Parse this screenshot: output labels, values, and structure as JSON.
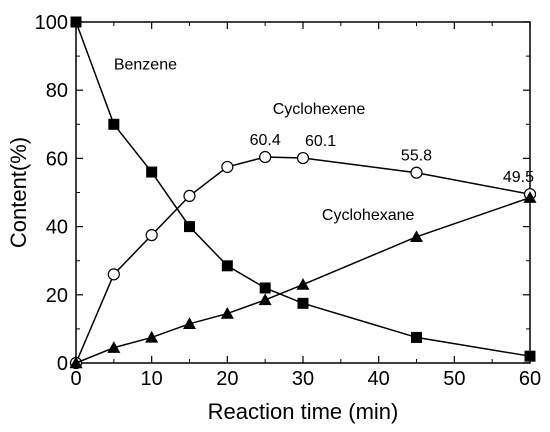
{
  "chart_data": {
    "type": "line",
    "xlabel": "Reaction time (min)",
    "ylabel": "Content(%)",
    "xlim": [
      0,
      60
    ],
    "ylim": [
      0,
      100
    ],
    "xticks": [
      0,
      10,
      20,
      30,
      40,
      50,
      60
    ],
    "yticks": [
      0,
      20,
      40,
      60,
      80,
      100
    ],
    "grid": false,
    "series": [
      {
        "name": "Benzene",
        "marker": "square-filled",
        "color": "#000000",
        "x": [
          0,
          5,
          10,
          15,
          20,
          25,
          30,
          45,
          60
        ],
        "y": [
          100,
          70,
          56,
          40,
          28.5,
          22,
          17.5,
          7.5,
          2
        ]
      },
      {
        "name": "Cyclohexene",
        "marker": "circle-open",
        "color": "#000000",
        "x": [
          0,
          5,
          10,
          15,
          20,
          25,
          30,
          45,
          60
        ],
        "y": [
          0,
          26,
          37.5,
          49,
          57.5,
          60.4,
          60.1,
          55.8,
          49.5
        ]
      },
      {
        "name": "Cyclohexane",
        "marker": "triangle-filled",
        "color": "#000000",
        "x": [
          0,
          5,
          10,
          15,
          20,
          25,
          30,
          45,
          60
        ],
        "y": [
          0,
          4.5,
          7.5,
          11.5,
          14.5,
          18.5,
          23,
          37,
          48.5
        ]
      }
    ],
    "annotations": [
      {
        "text": "Benzene",
        "x": 5,
        "y": 86
      },
      {
        "text": "Cyclohexene",
        "x": 26,
        "y": 73
      },
      {
        "text": "Cyclohexane",
        "x": 32.5,
        "y": 42
      }
    ],
    "data_labels": [
      {
        "text": "60.4",
        "x": 25,
        "y": 60.4
      },
      {
        "text": "60.1",
        "x": 30,
        "y": 60.1
      },
      {
        "text": "55.8",
        "x": 45,
        "y": 55.8
      },
      {
        "text": "49.5",
        "x": 60,
        "y": 49.5
      }
    ]
  }
}
